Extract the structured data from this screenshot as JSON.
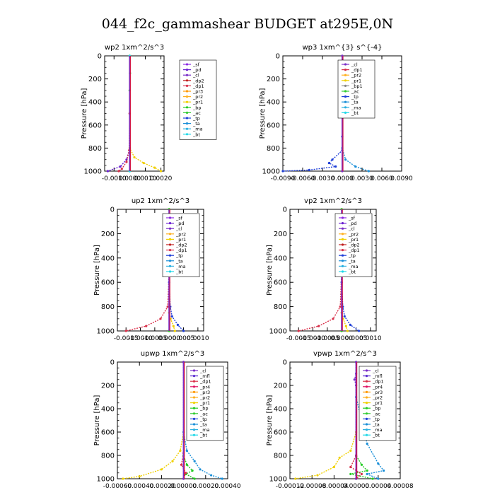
{
  "figure_title": "044_f2c_gammashear  BUDGET at295E,0N",
  "ylabel": "Pressure [hPa]",
  "yticks": [
    0,
    200,
    400,
    600,
    800,
    1000
  ],
  "series_colors": {
    "_sf": "#8b2be2",
    "_pd": "#6a1fd0",
    "_cl": "#7a2fc8",
    "_dp2": "#c02020",
    "_dp1": "#d8304a",
    "_pr3": "#ff9900",
    "_pr2": "#ffb020",
    "_pr1": "#f0d000",
    "_bp": "#22cc22",
    "_ac": "#33cc33",
    "_tp": "#1f3fd8",
    "_ta": "#1a8fd8",
    "_ma": "#2bb0e0",
    "_bt": "#22d8e8",
    "_mfl": "#5a2bd0",
    "_pr4": "#e01060"
  },
  "chart_data": [
    {
      "type": "line",
      "title": "wp2   1xm^2/s^3",
      "xlim": [
        -0.0016,
        0.0022
      ],
      "xticks": [
        -0.001,
        0.0,
        0.001,
        0.002
      ],
      "xtick_labels": [
        "-0.0010",
        "0.0000",
        "0.0010",
        "0.0020"
      ],
      "legend": [
        "_sf",
        "_pd",
        "_cl",
        "_dp2",
        "_dp1",
        "_pr3",
        "_pr2",
        "_pr1",
        "_bp",
        "_ac",
        "_tp",
        "_ta",
        "_ma",
        "_bt"
      ],
      "series": [
        {
          "name": "_pd",
          "points": [
            [
              0,
              0
            ],
            [
              0,
              500
            ],
            [
              1e-05,
              800
            ],
            [
              -0.0002,
              900
            ],
            [
              -0.0006,
              960
            ],
            [
              -0.0014,
              1000
            ]
          ]
        },
        {
          "name": "_pr1",
          "points": [
            [
              0,
              0
            ],
            [
              0,
              500
            ],
            [
              0,
              800
            ],
            [
              0.0003,
              880
            ],
            [
              0.0009,
              930
            ],
            [
              0.0016,
              970
            ],
            [
              0.002,
              1000
            ]
          ]
        },
        {
          "name": "_dp1",
          "points": [
            [
              0,
              0
            ],
            [
              0,
              500
            ],
            [
              -3e-05,
              820
            ],
            [
              -0.0002,
              920
            ],
            [
              -0.0005,
              980
            ],
            [
              -0.0007,
              1000
            ]
          ]
        },
        {
          "name": "_bp",
          "points": [
            [
              0,
              0
            ],
            [
              2e-05,
              150
            ],
            [
              0,
              300
            ],
            [
              0,
              1000
            ]
          ]
        },
        {
          "name": "_bt",
          "points": [
            [
              0,
              0
            ],
            [
              0,
              1000
            ]
          ]
        }
      ]
    },
    {
      "type": "line",
      "title": "wp3   1xm^{3} s^{-4}",
      "xlim": [
        -0.009,
        0.009
      ],
      "xticks": [
        -0.009,
        -0.006,
        -0.003,
        0.0,
        0.003,
        0.006,
        0.009
      ],
      "xtick_labels": [
        "-0.0090",
        "-0.0060",
        "-0.0030",
        "0.0000",
        "0.0030",
        "0.0060",
        "0.0090"
      ],
      "legend": [
        "_cl",
        "_dp1",
        "_pr2",
        "_pr1",
        "_bp1",
        "_ac",
        "_tp",
        "_ta",
        "_ma",
        "_bt"
      ],
      "series": [
        {
          "name": "_tp",
          "points": [
            [
              0,
              0
            ],
            [
              0,
              700
            ],
            [
              0,
              820
            ],
            [
              -0.0015,
              900
            ],
            [
              -0.002,
              930
            ],
            [
              -0.001,
              960
            ],
            [
              -0.005,
              990
            ],
            [
              -0.009,
              1000
            ]
          ]
        },
        {
          "name": "_ta",
          "points": [
            [
              0,
              0
            ],
            [
              0,
              800
            ],
            [
              0.0005,
              900
            ],
            [
              0.002,
              960
            ],
            [
              0.004,
              1000
            ]
          ]
        },
        {
          "name": "_dp1",
          "points": [
            [
              0,
              0
            ],
            [
              0,
              1000
            ]
          ]
        },
        {
          "name": "_cl",
          "points": [
            [
              0,
              0
            ],
            [
              0,
              1000
            ]
          ]
        }
      ]
    },
    {
      "type": "line",
      "title": "up2   1xm^2/s^3",
      "xlim": [
        -0.0018,
        0.0012
      ],
      "xticks": [
        -0.0015,
        -0.001,
        -0.0005,
        0.0,
        0.0005,
        0.001
      ],
      "xtick_labels": [
        "-0.0015",
        "-0.0010",
        "-0.0005",
        "0.0000",
        "0.0005",
        "0.0010"
      ],
      "legend": [
        "_sf",
        "_pd",
        "_cl",
        "_pr2",
        "_pr1",
        "_dp2",
        "_dp1",
        "_tp",
        "_ta",
        "_ma",
        "_bt"
      ],
      "series": [
        {
          "name": "_dp1",
          "points": [
            [
              0,
              0
            ],
            [
              0,
              500
            ],
            [
              -5e-05,
              800
            ],
            [
              -0.0003,
              900
            ],
            [
              -0.0008,
              960
            ],
            [
              -0.0015,
              1000
            ]
          ]
        },
        {
          "name": "_tp",
          "points": [
            [
              0,
              0
            ],
            [
              0,
              600
            ],
            [
              4e-05,
              800
            ],
            [
              0.0001,
              880
            ],
            [
              0.0003,
              950
            ],
            [
              0.0005,
              1000
            ]
          ]
        },
        {
          "name": "_pr1",
          "points": [
            [
              0,
              0
            ],
            [
              0,
              850
            ],
            [
              5e-05,
              900
            ],
            [
              0.00015,
              960
            ],
            [
              0.0002,
              1000
            ]
          ]
        },
        {
          "name": "_dp2",
          "points": [
            [
              0,
              0
            ],
            [
              0,
              1000
            ]
          ]
        },
        {
          "name": "_bp",
          "points": [
            [
              0,
              0
            ],
            [
              -2e-05,
              150
            ],
            [
              0,
              300
            ],
            [
              0,
              1000
            ]
          ]
        }
      ]
    },
    {
      "type": "line",
      "title": "vp2   1xm^2/s^3",
      "xlim": [
        -0.0018,
        0.0012
      ],
      "xticks": [
        -0.0015,
        -0.001,
        -0.0005,
        0.0,
        0.0005,
        0.001
      ],
      "xtick_labels": [
        "-0.0015",
        "-0.0010",
        "-0.0005",
        "0.0000",
        "0.0005",
        "0.0010"
      ],
      "legend": [
        "_sf",
        "_pd",
        "_cl",
        "_pr2",
        "_pr1",
        "_dp2",
        "_dp1",
        "_tp",
        "_ta",
        "_ma",
        "_bt"
      ],
      "series": [
        {
          "name": "_dp1",
          "points": [
            [
              0,
              0
            ],
            [
              0,
              500
            ],
            [
              -5e-05,
              800
            ],
            [
              -0.0003,
              900
            ],
            [
              -0.0008,
              960
            ],
            [
              -0.0015,
              1000
            ]
          ]
        },
        {
          "name": "_tp",
          "points": [
            [
              0,
              0
            ],
            [
              0,
              600
            ],
            [
              4e-05,
              800
            ],
            [
              0.0001,
              880
            ],
            [
              0.0003,
              950
            ],
            [
              0.0006,
              1000
            ]
          ]
        },
        {
          "name": "_pr1",
          "points": [
            [
              0,
              0
            ],
            [
              0,
              850
            ],
            [
              5e-05,
              900
            ],
            [
              0.00015,
              960
            ],
            [
              0.0002,
              1000
            ]
          ]
        },
        {
          "name": "_dp2",
          "points": [
            [
              0,
              0
            ],
            [
              0,
              1000
            ]
          ]
        },
        {
          "name": "_bp",
          "points": [
            [
              0,
              0
            ],
            [
              0,
              1000
            ]
          ]
        }
      ]
    },
    {
      "type": "line",
      "title": "upwp   1xm^2/s^3",
      "xlim": [
        -0.0006,
        0.0004
      ],
      "xticks": [
        -0.0006,
        -0.0004,
        -0.0002,
        0.0,
        0.0002,
        0.0004
      ],
      "xtick_labels": [
        "-0.00060",
        "-0.00040",
        "-0.00020",
        "0.00000",
        "0.00020",
        "0.00040"
      ],
      "legend": [
        "_cl",
        "_mfl",
        "_dp1",
        "_pr4",
        "_pr3",
        "_pr2",
        "_pr1",
        "_bp",
        "_ac",
        "_tp",
        "_ta",
        "_ma",
        "_bt"
      ],
      "series": [
        {
          "name": "_pr1",
          "points": [
            [
              0,
              0
            ],
            [
              0,
              600
            ],
            [
              -3e-05,
              760
            ],
            [
              -0.0001,
              850
            ],
            [
              -0.0002,
              920
            ],
            [
              -0.0004,
              980
            ],
            [
              -0.00055,
              1000
            ]
          ]
        },
        {
          "name": "_ta",
          "points": [
            [
              0,
              0
            ],
            [
              0,
              600
            ],
            [
              3e-05,
              760
            ],
            [
              0.0001,
              850
            ],
            [
              0.00015,
              920
            ],
            [
              0.00025,
              970
            ],
            [
              0.00035,
              1000
            ]
          ]
        },
        {
          "name": "_bp",
          "points": [
            [
              0,
              0
            ],
            [
              0,
              800
            ],
            [
              3e-05,
              880
            ],
            [
              8e-05,
              930
            ],
            [
              2e-05,
              960
            ],
            [
              0.0001,
              1000
            ]
          ]
        },
        {
          "name": "_dp1",
          "points": [
            [
              0,
              0
            ],
            [
              0,
              780
            ],
            [
              -2e-05,
              880
            ],
            [
              2e-05,
              950
            ],
            [
              0,
              1000
            ]
          ]
        },
        {
          "name": "_cl",
          "points": [
            [
              0,
              0
            ],
            [
              0,
              1000
            ]
          ]
        }
      ]
    },
    {
      "type": "line",
      "title": "vpwp   1xm^2/s^3",
      "xlim": [
        -0.00012,
        8e-05
      ],
      "xticks": [
        -0.00012,
        -8e-05,
        -4e-05,
        0.0,
        4e-05,
        8e-05
      ],
      "xtick_labels": [
        "-0.00012",
        "-0.00008",
        "-0.00004",
        "0.00000",
        "0.00004",
        "0.00008"
      ],
      "legend": [
        "_cl",
        "_mfl",
        "_dp1",
        "_pr4",
        "_pr3",
        "_pr2",
        "_pr1",
        "_bp",
        "_ac",
        "_tp",
        "_ta",
        "_ma",
        "_bt"
      ],
      "series": [
        {
          "name": "_pr1",
          "points": [
            [
              0,
              0
            ],
            [
              0,
              600
            ],
            [
              -1e-05,
              760
            ],
            [
              -3e-05,
              820
            ],
            [
              -4e-05,
              900
            ],
            [
              -7e-05,
              970
            ],
            [
              -0.00011,
              1000
            ]
          ]
        },
        {
          "name": "_ta",
          "points": [
            [
              0,
              0
            ],
            [
              0,
              300
            ],
            [
              1e-05,
              500
            ],
            [
              2e-05,
              700
            ],
            [
              4e-05,
              870
            ],
            [
              5e-05,
              930
            ],
            [
              2e-05,
              960
            ],
            [
              4e-05,
              1000
            ]
          ]
        },
        {
          "name": "_bp",
          "points": [
            [
              0,
              0
            ],
            [
              0,
              800
            ],
            [
              1e-05,
              880
            ],
            [
              2e-05,
              930
            ],
            [
              -1e-05,
              960
            ],
            [
              3e-05,
              1000
            ]
          ]
        },
        {
          "name": "_dp1",
          "points": [
            [
              0,
              0
            ],
            [
              0,
              800
            ],
            [
              -1e-05,
              900
            ],
            [
              1e-05,
              960
            ],
            [
              0,
              1000
            ]
          ]
        },
        {
          "name": "_cl",
          "points": [
            [
              0,
              0
            ],
            [
              0,
              100
            ],
            [
              -3e-06,
              150
            ],
            [
              0,
              200
            ],
            [
              0,
              1000
            ]
          ]
        }
      ]
    }
  ]
}
